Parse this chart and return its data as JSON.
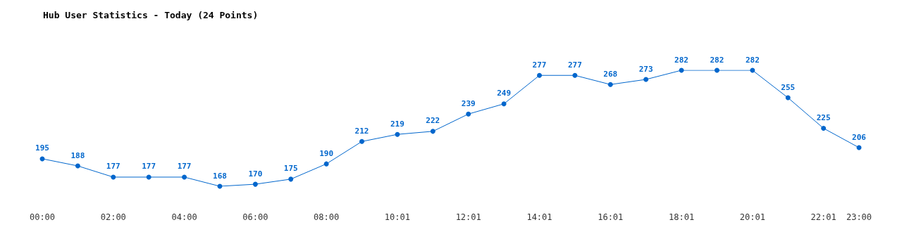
{
  "chart_data": {
    "type": "line",
    "title": "Hub User Statistics - Today (24 Points)",
    "categories": [
      "00:00",
      null,
      "02:00",
      null,
      "04:00",
      null,
      "06:00",
      null,
      "08:00",
      null,
      "10:01",
      null,
      "12:01",
      null,
      "14:01",
      null,
      "16:01",
      null,
      "18:01",
      null,
      "20:01",
      null,
      "22:01",
      "23:00"
    ],
    "values": [
      195,
      188,
      177,
      177,
      177,
      168,
      170,
      175,
      190,
      212,
      219,
      222,
      239,
      249,
      277,
      277,
      268,
      273,
      282,
      282,
      282,
      255,
      225,
      206
    ],
    "color": "#0066cc",
    "marker": "circle",
    "data_labels": true,
    "tick_labels": "x"
  }
}
